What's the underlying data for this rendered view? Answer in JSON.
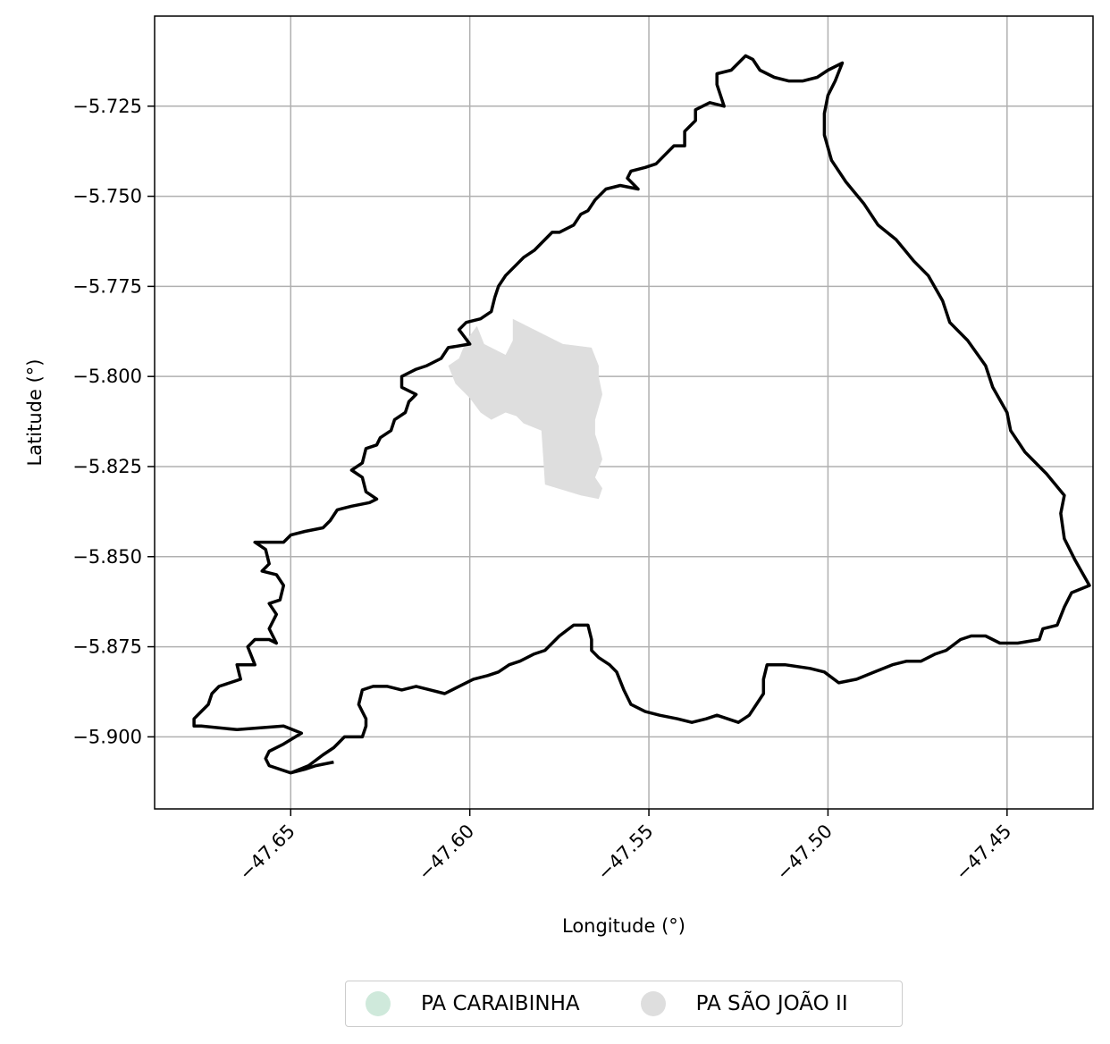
{
  "chart_data": {
    "type": "map",
    "xlabel": "Longitude (°)",
    "ylabel": "Latitude (°)",
    "xlim": [
      -47.688,
      -47.426
    ],
    "ylim": [
      -5.92,
      -5.7
    ],
    "xticks": [
      -47.65,
      -47.6,
      -47.55,
      -47.5,
      -47.45
    ],
    "xtick_labels": [
      "−47.65",
      "−47.60",
      "−47.55",
      "−47.50",
      "−47.45"
    ],
    "yticks": [
      -5.725,
      -5.75,
      -5.775,
      -5.8,
      -5.825,
      -5.85,
      -5.875,
      -5.9
    ],
    "ytick_labels": [
      "−5.725",
      "−5.750",
      "−5.775",
      "−5.800",
      "−5.825",
      "−5.850",
      "−5.875",
      "−5.900"
    ],
    "grid": true,
    "legend_position": "bottom-center",
    "colors": {
      "outline": "#000000",
      "pa_caraibinha": "#cfe9db",
      "pa_sao_joao_ii": "#dedede",
      "grid": "#b0b0b0"
    },
    "legend": [
      {
        "label": "PA CARAIBINHA",
        "color": "#cfe9db"
      },
      {
        "label": "PA SÃO JOÃO II",
        "color": "#dedede"
      }
    ],
    "boundary_outline": [
      [
        -47.638,
        -5.907
      ],
      [
        -47.643,
        -5.908
      ],
      [
        -47.646,
        -5.909
      ],
      [
        -47.65,
        -5.91
      ],
      [
        -47.656,
        -5.908
      ],
      [
        -47.657,
        -5.906
      ],
      [
        -47.656,
        -5.904
      ],
      [
        -47.652,
        -5.902
      ],
      [
        -47.647,
        -5.899
      ],
      [
        -47.652,
        -5.897
      ],
      [
        -47.665,
        -5.898
      ],
      [
        -47.675,
        -5.897
      ],
      [
        -47.677,
        -5.897
      ],
      [
        -47.677,
        -5.895
      ],
      [
        -47.675,
        -5.893
      ],
      [
        -47.673,
        -5.891
      ],
      [
        -47.672,
        -5.888
      ],
      [
        -47.67,
        -5.886
      ],
      [
        -47.664,
        -5.884
      ],
      [
        -47.665,
        -5.88
      ],
      [
        -47.66,
        -5.88
      ],
      [
        -47.662,
        -5.875
      ],
      [
        -47.66,
        -5.873
      ],
      [
        -47.656,
        -5.873
      ],
      [
        -47.654,
        -5.874
      ],
      [
        -47.656,
        -5.87
      ],
      [
        -47.654,
        -5.866
      ],
      [
        -47.656,
        -5.863
      ],
      [
        -47.653,
        -5.862
      ],
      [
        -47.652,
        -5.858
      ],
      [
        -47.654,
        -5.855
      ],
      [
        -47.658,
        -5.854
      ],
      [
        -47.656,
        -5.852
      ],
      [
        -47.657,
        -5.848
      ],
      [
        -47.66,
        -5.846
      ],
      [
        -47.656,
        -5.846
      ],
      [
        -47.652,
        -5.846
      ],
      [
        -47.65,
        -5.844
      ],
      [
        -47.646,
        -5.843
      ],
      [
        -47.641,
        -5.842
      ],
      [
        -47.639,
        -5.84
      ],
      [
        -47.637,
        -5.837
      ],
      [
        -47.633,
        -5.836
      ],
      [
        -47.628,
        -5.835
      ],
      [
        -47.626,
        -5.834
      ],
      [
        -47.629,
        -5.832
      ],
      [
        -47.63,
        -5.828
      ],
      [
        -47.633,
        -5.826
      ],
      [
        -47.63,
        -5.824
      ],
      [
        -47.629,
        -5.82
      ],
      [
        -47.626,
        -5.819
      ],
      [
        -47.625,
        -5.817
      ],
      [
        -47.622,
        -5.815
      ],
      [
        -47.621,
        -5.812
      ],
      [
        -47.618,
        -5.81
      ],
      [
        -47.617,
        -5.807
      ],
      [
        -47.615,
        -5.805
      ],
      [
        -47.619,
        -5.803
      ],
      [
        -47.619,
        -5.8
      ],
      [
        -47.615,
        -5.798
      ],
      [
        -47.612,
        -5.797
      ],
      [
        -47.608,
        -5.795
      ],
      [
        -47.606,
        -5.792
      ],
      [
        -47.6,
        -5.791
      ],
      [
        -47.603,
        -5.787
      ],
      [
        -47.601,
        -5.785
      ],
      [
        -47.597,
        -5.784
      ],
      [
        -47.594,
        -5.782
      ],
      [
        -47.593,
        -5.778
      ],
      [
        -47.592,
        -5.775
      ],
      [
        -47.59,
        -5.772
      ],
      [
        -47.587,
        -5.769
      ],
      [
        -47.585,
        -5.767
      ],
      [
        -47.582,
        -5.765
      ],
      [
        -47.58,
        -5.763
      ],
      [
        -47.577,
        -5.76
      ],
      [
        -47.575,
        -5.76
      ],
      [
        -47.571,
        -5.758
      ],
      [
        -47.569,
        -5.755
      ],
      [
        -47.567,
        -5.754
      ],
      [
        -47.565,
        -5.751
      ],
      [
        -47.562,
        -5.748
      ],
      [
        -47.558,
        -5.747
      ],
      [
        -47.553,
        -5.748
      ],
      [
        -47.556,
        -5.745
      ],
      [
        -47.555,
        -5.743
      ],
      [
        -47.551,
        -5.742
      ],
      [
        -47.548,
        -5.741
      ],
      [
        -47.546,
        -5.739
      ],
      [
        -47.543,
        -5.736
      ],
      [
        -47.54,
        -5.736
      ],
      [
        -47.54,
        -5.732
      ],
      [
        -47.537,
        -5.729
      ],
      [
        -47.537,
        -5.726
      ],
      [
        -47.533,
        -5.724
      ],
      [
        -47.529,
        -5.725
      ],
      [
        -47.53,
        -5.722
      ],
      [
        -47.531,
        -5.719
      ],
      [
        -47.531,
        -5.716
      ],
      [
        -47.527,
        -5.715
      ],
      [
        -47.523,
        -5.711
      ],
      [
        -47.521,
        -5.712
      ],
      [
        -47.519,
        -5.715
      ],
      [
        -47.515,
        -5.717
      ],
      [
        -47.511,
        -5.718
      ],
      [
        -47.507,
        -5.718
      ],
      [
        -47.503,
        -5.717
      ],
      [
        -47.5,
        -5.715
      ],
      [
        -47.496,
        -5.713
      ],
      [
        -47.498,
        -5.718
      ],
      [
        -47.5,
        -5.722
      ],
      [
        -47.501,
        -5.727
      ],
      [
        -47.501,
        -5.733
      ],
      [
        -47.499,
        -5.74
      ],
      [
        -47.495,
        -5.746
      ],
      [
        -47.49,
        -5.752
      ],
      [
        -47.486,
        -5.758
      ],
      [
        -47.481,
        -5.762
      ],
      [
        -47.476,
        -5.768
      ],
      [
        -47.472,
        -5.772
      ],
      [
        -47.468,
        -5.779
      ],
      [
        -47.466,
        -5.785
      ],
      [
        -47.461,
        -5.79
      ],
      [
        -47.456,
        -5.797
      ],
      [
        -47.454,
        -5.803
      ],
      [
        -47.45,
        -5.81
      ],
      [
        -47.449,
        -5.815
      ],
      [
        -47.445,
        -5.821
      ],
      [
        -47.439,
        -5.827
      ],
      [
        -47.434,
        -5.833
      ],
      [
        -47.435,
        -5.838
      ],
      [
        -47.434,
        -5.845
      ],
      [
        -47.431,
        -5.851
      ],
      [
        -47.427,
        -5.858
      ],
      [
        -47.432,
        -5.86
      ],
      [
        -47.434,
        -5.864
      ],
      [
        -47.436,
        -5.869
      ],
      [
        -47.44,
        -5.87
      ],
      [
        -47.441,
        -5.873
      ],
      [
        -47.447,
        -5.874
      ],
      [
        -47.452,
        -5.874
      ],
      [
        -47.456,
        -5.872
      ],
      [
        -47.46,
        -5.872
      ],
      [
        -47.463,
        -5.873
      ],
      [
        -47.467,
        -5.876
      ],
      [
        -47.47,
        -5.877
      ],
      [
        -47.474,
        -5.879
      ],
      [
        -47.478,
        -5.879
      ],
      [
        -47.482,
        -5.88
      ],
      [
        -47.487,
        -5.882
      ],
      [
        -47.492,
        -5.884
      ],
      [
        -47.497,
        -5.885
      ],
      [
        -47.501,
        -5.882
      ],
      [
        -47.505,
        -5.881
      ],
      [
        -47.512,
        -5.88
      ],
      [
        -47.517,
        -5.88
      ],
      [
        -47.518,
        -5.884
      ],
      [
        -47.518,
        -5.888
      ],
      [
        -47.52,
        -5.891
      ],
      [
        -47.522,
        -5.894
      ],
      [
        -47.525,
        -5.896
      ],
      [
        -47.528,
        -5.895
      ],
      [
        -47.531,
        -5.894
      ],
      [
        -47.534,
        -5.895
      ],
      [
        -47.538,
        -5.896
      ],
      [
        -47.542,
        -5.895
      ],
      [
        -47.547,
        -5.894
      ],
      [
        -47.551,
        -5.893
      ],
      [
        -47.555,
        -5.891
      ],
      [
        -47.557,
        -5.887
      ],
      [
        -47.559,
        -5.882
      ],
      [
        -47.561,
        -5.88
      ],
      [
        -47.564,
        -5.878
      ],
      [
        -47.566,
        -5.876
      ],
      [
        -47.566,
        -5.873
      ],
      [
        -47.567,
        -5.869
      ],
      [
        -47.571,
        -5.869
      ],
      [
        -47.575,
        -5.872
      ],
      [
        -47.579,
        -5.876
      ],
      [
        -47.582,
        -5.877
      ],
      [
        -47.586,
        -5.879
      ],
      [
        -47.589,
        -5.88
      ],
      [
        -47.592,
        -5.882
      ],
      [
        -47.595,
        -5.883
      ],
      [
        -47.599,
        -5.884
      ],
      [
        -47.603,
        -5.886
      ],
      [
        -47.607,
        -5.888
      ],
      [
        -47.611,
        -5.887
      ],
      [
        -47.615,
        -5.886
      ],
      [
        -47.619,
        -5.887
      ],
      [
        -47.623,
        -5.886
      ],
      [
        -47.627,
        -5.886
      ],
      [
        -47.63,
        -5.887
      ],
      [
        -47.631,
        -5.891
      ],
      [
        -47.63,
        -5.893
      ],
      [
        -47.629,
        -5.895
      ],
      [
        -47.629,
        -5.897
      ],
      [
        -47.63,
        -5.9
      ],
      [
        -47.635,
        -5.9
      ],
      [
        -47.638,
        -5.903
      ],
      [
        -47.641,
        -5.905
      ],
      [
        -47.645,
        -5.908
      ],
      [
        -47.65,
        -5.91
      ]
    ],
    "sao_joao_ii_area": [
      [
        -47.588,
        -5.784
      ],
      [
        -47.574,
        -5.791
      ],
      [
        -47.566,
        -5.792
      ],
      [
        -47.564,
        -5.797
      ],
      [
        -47.564,
        -5.8
      ],
      [
        -47.563,
        -5.805
      ],
      [
        -47.565,
        -5.812
      ],
      [
        -47.565,
        -5.816
      ],
      [
        -47.564,
        -5.819
      ],
      [
        -47.563,
        -5.823
      ],
      [
        -47.565,
        -5.828
      ],
      [
        -47.563,
        -5.831
      ],
      [
        -47.564,
        -5.834
      ],
      [
        -47.569,
        -5.833
      ],
      [
        -47.579,
        -5.83
      ],
      [
        -47.58,
        -5.815
      ],
      [
        -47.585,
        -5.813
      ],
      [
        -47.587,
        -5.811
      ],
      [
        -47.59,
        -5.81
      ],
      [
        -47.594,
        -5.812
      ],
      [
        -47.597,
        -5.81
      ],
      [
        -47.6,
        -5.806
      ],
      [
        -47.604,
        -5.802
      ],
      [
        -47.606,
        -5.797
      ],
      [
        -47.603,
        -5.795
      ],
      [
        -47.601,
        -5.79
      ],
      [
        -47.598,
        -5.786
      ],
      [
        -47.596,
        -5.791
      ],
      [
        -47.59,
        -5.794
      ],
      [
        -47.588,
        -5.79
      ]
    ]
  }
}
